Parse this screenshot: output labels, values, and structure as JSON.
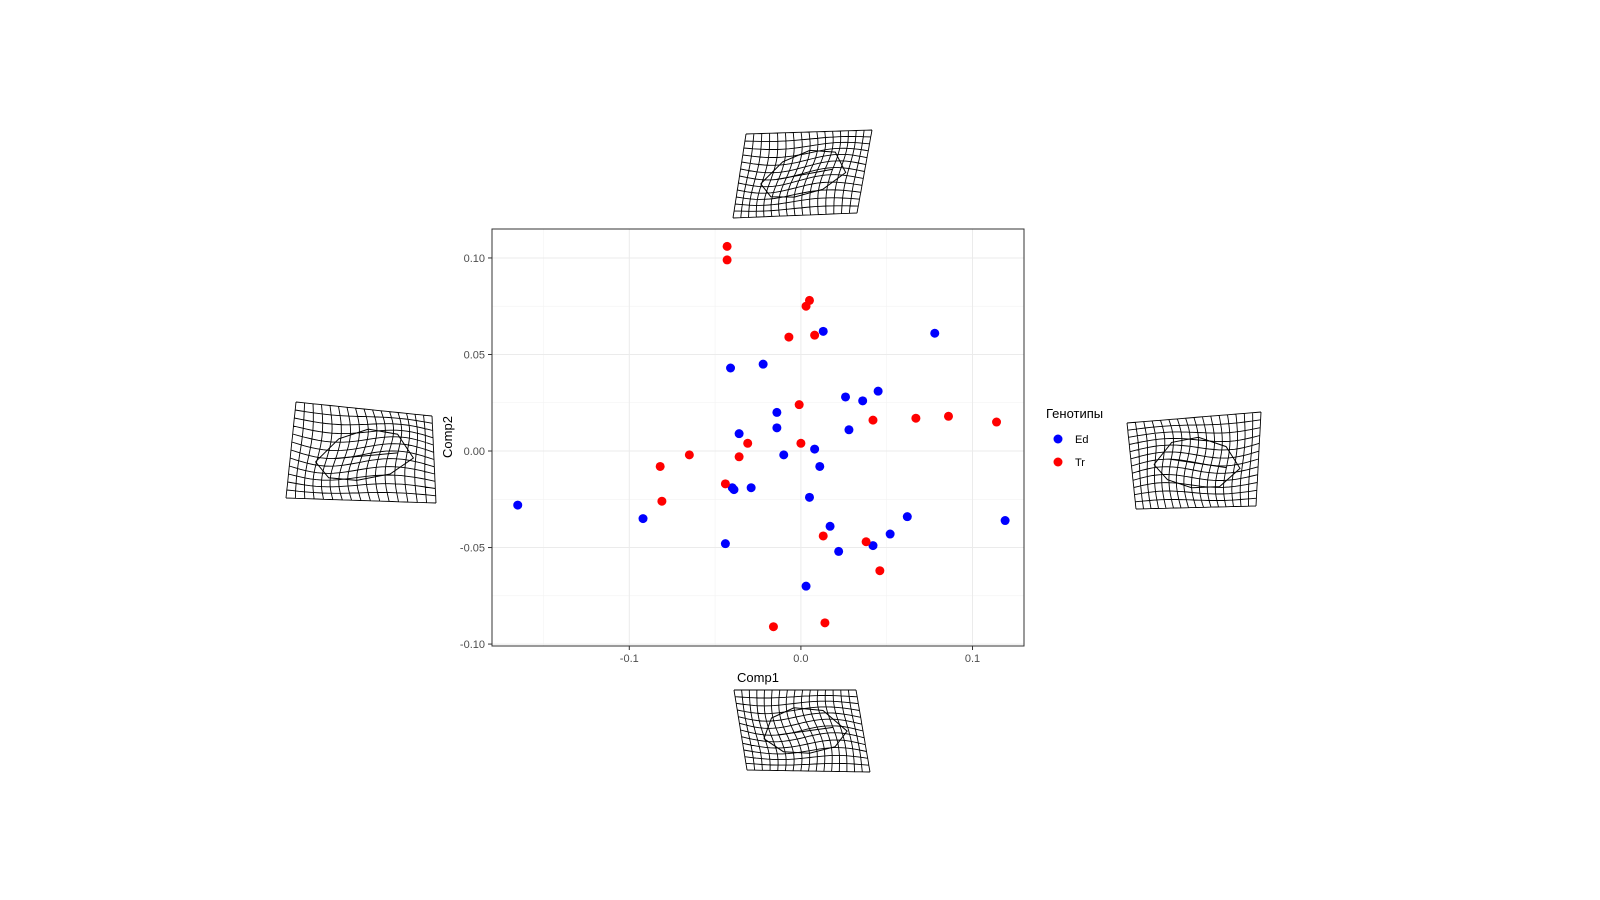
{
  "chart_data": {
    "type": "scatter",
    "title": "",
    "xlabel": "Comp1",
    "ylabel": "Comp2",
    "xlim": [
      -0.18,
      0.13
    ],
    "ylim": [
      -0.101,
      0.115
    ],
    "x_ticks": [
      -0.1,
      0.0,
      0.1
    ],
    "x_tick_labels": [
      "-0.1",
      "0.0",
      "0.1"
    ],
    "y_ticks": [
      -0.1,
      -0.05,
      0.0,
      0.05,
      0.1
    ],
    "y_tick_labels": [
      "-0.10",
      "-0.05",
      "0.00",
      "0.05",
      "0.10"
    ],
    "grid": true,
    "legend": {
      "title": "Генотипы",
      "position": "right",
      "entries": [
        "Ed",
        "Tr"
      ]
    },
    "series": [
      {
        "name": "Ed",
        "color": "#0000ff",
        "points": [
          [
            -0.165,
            -0.028
          ],
          [
            -0.092,
            -0.035
          ],
          [
            -0.044,
            -0.048
          ],
          [
            -0.041,
            0.043
          ],
          [
            -0.04,
            -0.019
          ],
          [
            -0.039,
            -0.02
          ],
          [
            -0.036,
            0.009
          ],
          [
            -0.029,
            -0.019
          ],
          [
            -0.022,
            0.045
          ],
          [
            -0.014,
            0.02
          ],
          [
            -0.014,
            0.012
          ],
          [
            -0.01,
            -0.002
          ],
          [
            0.003,
            -0.07
          ],
          [
            0.005,
            -0.024
          ],
          [
            0.008,
            0.001
          ],
          [
            0.011,
            -0.008
          ],
          [
            0.013,
            0.062
          ],
          [
            0.017,
            -0.039
          ],
          [
            0.022,
            -0.052
          ],
          [
            0.026,
            0.028
          ],
          [
            0.028,
            0.011
          ],
          [
            0.036,
            0.026
          ],
          [
            0.042,
            -0.049
          ],
          [
            0.045,
            0.031
          ],
          [
            0.052,
            -0.043
          ],
          [
            0.062,
            -0.034
          ],
          [
            0.078,
            0.061
          ],
          [
            0.119,
            -0.036
          ]
        ]
      },
      {
        "name": "Tr",
        "color": "#ff0000",
        "points": [
          [
            -0.082,
            -0.008
          ],
          [
            -0.081,
            -0.026
          ],
          [
            -0.065,
            -0.002
          ],
          [
            -0.043,
            0.106
          ],
          [
            -0.043,
            0.099
          ],
          [
            -0.044,
            -0.017
          ],
          [
            -0.036,
            -0.003
          ],
          [
            -0.031,
            0.004
          ],
          [
            -0.016,
            -0.091
          ],
          [
            -0.007,
            0.059
          ],
          [
            -0.001,
            0.024
          ],
          [
            0.0,
            0.004
          ],
          [
            0.003,
            0.075
          ],
          [
            0.005,
            0.078
          ],
          [
            0.008,
            0.06
          ],
          [
            0.013,
            -0.044
          ],
          [
            0.014,
            -0.089
          ],
          [
            0.038,
            -0.047
          ],
          [
            0.042,
            0.016
          ],
          [
            0.046,
            -0.062
          ],
          [
            0.067,
            0.017
          ],
          [
            0.086,
            0.018
          ],
          [
            0.114,
            0.015
          ]
        ]
      }
    ]
  },
  "deformation_grids": [
    {
      "position": "top",
      "icon": "deformation-grid-icon"
    },
    {
      "position": "bottom",
      "icon": "deformation-grid-icon"
    },
    {
      "position": "left",
      "icon": "deformation-grid-icon"
    },
    {
      "position": "right",
      "icon": "deformation-grid-icon"
    }
  ]
}
